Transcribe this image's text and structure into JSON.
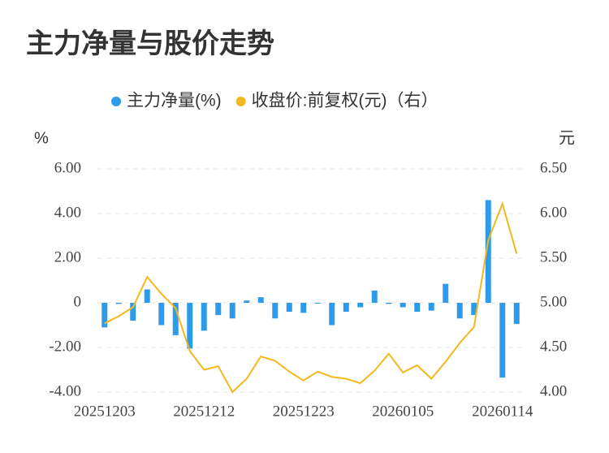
{
  "chart_data": {
    "type": "bar_line",
    "title": "主力净量与股价走势",
    "y_label": "%",
    "y2_label": "元",
    "categories": [
      "20251203",
      null,
      null,
      null,
      null,
      null,
      null,
      "20251212",
      null,
      null,
      null,
      null,
      null,
      null,
      "20251223",
      null,
      null,
      null,
      null,
      null,
      null,
      "20260105",
      null,
      null,
      null,
      null,
      null,
      null,
      "20260114",
      null
    ],
    "series": [
      {
        "name": "主力净量(%)",
        "color": "#2e9bea",
        "type": "bar",
        "axis": "y",
        "values": [
          -1.1,
          -0.05,
          -0.8,
          0.6,
          -1.0,
          -1.45,
          -2.05,
          -1.25,
          -0.55,
          -0.7,
          0.1,
          0.25,
          -0.7,
          -0.4,
          -0.45,
          0,
          -1.0,
          -0.4,
          -0.2,
          0.55,
          -0.05,
          -0.2,
          -0.4,
          -0.35,
          0.85,
          -0.7,
          -0.55,
          4.6,
          -3.35,
          -0.95
        ]
      },
      {
        "name": "收盘价:前复权(元)（右）",
        "color": "#f4b81c",
        "type": "line",
        "axis": "y2",
        "values": [
          4.77,
          4.85,
          4.95,
          5.29,
          5.1,
          4.94,
          4.46,
          4.25,
          4.29,
          4.0,
          4.15,
          4.4,
          4.35,
          4.23,
          4.13,
          4.23,
          4.17,
          4.15,
          4.1,
          4.24,
          4.43,
          4.22,
          4.3,
          4.15,
          4.34,
          4.55,
          4.73,
          5.7,
          6.11,
          5.55
        ]
      }
    ],
    "ylim": [
      -4,
      6
    ],
    "yticks": [
      {
        "value": -4,
        "label": "-4.00"
      },
      {
        "value": -2,
        "label": "-2.00"
      },
      0,
      {
        "value": 2,
        "label": "2.00"
      },
      {
        "value": 4,
        "label": "4.00"
      },
      {
        "value": 6,
        "label": "6.00"
      }
    ],
    "y2lim": [
      4,
      6.5
    ],
    "y2ticks": [
      {
        "value": 4,
        "label": "4.00"
      },
      {
        "value": 4.5,
        "label": "4.50"
      },
      {
        "value": 5,
        "label": "5.00"
      },
      {
        "value": 5.5,
        "label": "5.50"
      },
      {
        "value": 6,
        "label": "6.00"
      },
      {
        "value": 6.5,
        "label": "6.50"
      }
    ],
    "grid": true,
    "legend": "top"
  }
}
